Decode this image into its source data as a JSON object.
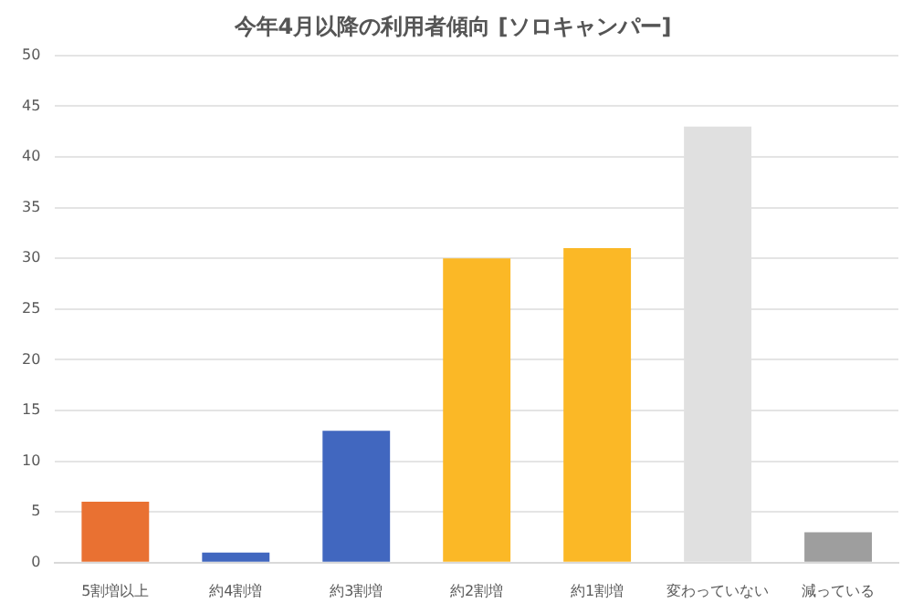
{
  "chart_data": {
    "type": "bar",
    "title": "今年4月以降の利用者傾向 [ソロキャンパー]",
    "categories": [
      "5割増以上",
      "約4割増",
      "約3割増",
      "約2割増",
      "約1割増",
      "変わっていない",
      "減っている"
    ],
    "values": [
      6,
      1,
      13,
      30,
      31,
      43,
      3
    ],
    "colors": [
      "#e97132",
      "#4167bf",
      "#4167bf",
      "#fbb826",
      "#fbb826",
      "#e0e0e0",
      "#9e9e9e"
    ],
    "ylim": [
      0,
      50
    ],
    "yticks": [
      0,
      5,
      10,
      15,
      20,
      25,
      30,
      35,
      40,
      45,
      50
    ],
    "grid": "y",
    "legend": false
  }
}
